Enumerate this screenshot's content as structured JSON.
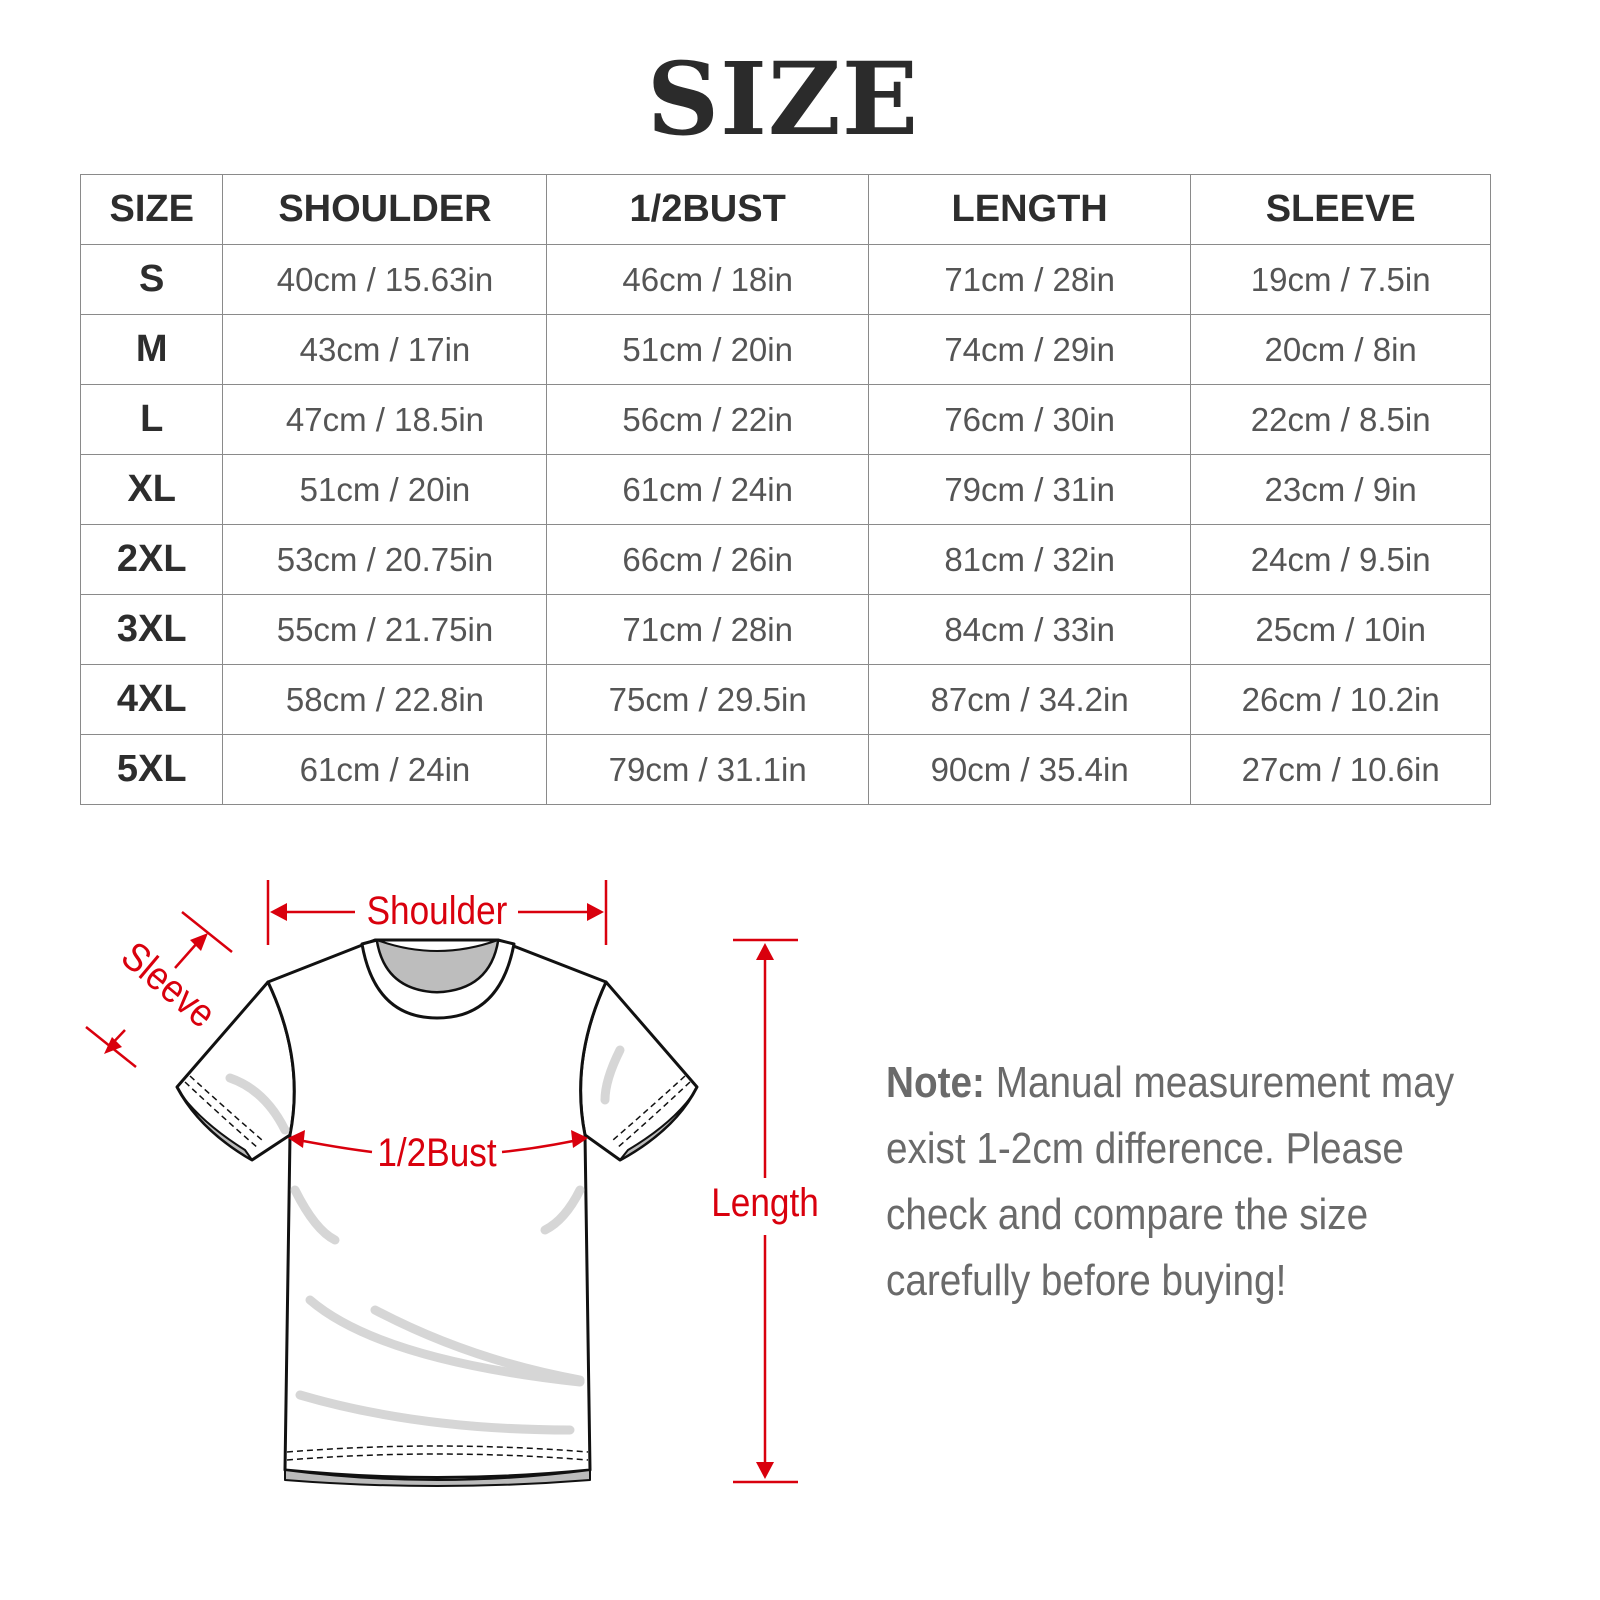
{
  "title": "SIZE",
  "table": {
    "headers": [
      "SIZE",
      "SHOULDER",
      "1/2BUST",
      "LENGTH",
      "SLEEVE"
    ],
    "rows": [
      [
        "S",
        "40cm / 15.63in",
        "46cm / 18in",
        "71cm / 28in",
        "19cm / 7.5in"
      ],
      [
        "M",
        "43cm / 17in",
        "51cm / 20in",
        "74cm / 29in",
        "20cm / 8in"
      ],
      [
        "L",
        "47cm / 18.5in",
        "56cm / 22in",
        "76cm / 30in",
        "22cm / 8.5in"
      ],
      [
        "XL",
        "51cm / 20in",
        "61cm / 24in",
        "79cm / 31in",
        "23cm / 9in"
      ],
      [
        "2XL",
        "53cm / 20.75in",
        "66cm / 26in",
        "81cm / 32in",
        "24cm / 9.5in"
      ],
      [
        "3XL",
        "55cm / 21.75in",
        "71cm / 28in",
        "84cm / 33in",
        "25cm / 10in"
      ],
      [
        "4XL",
        "58cm / 22.8in",
        "75cm / 29.5in",
        "87cm / 34.2in",
        "26cm / 10.2in"
      ],
      [
        "5XL",
        "61cm / 24in",
        "79cm / 31.1in",
        "90cm / 35.4in",
        "27cm / 10.6in"
      ]
    ]
  },
  "diagram": {
    "labels": {
      "shoulder": "Shoulder",
      "sleeve": "Sleeve",
      "bust": "1/2Bust",
      "length": "Length"
    },
    "icon": "t-shirt-icon",
    "colors": {
      "measure": "#d9000d",
      "outline": "#111111",
      "shade": "#c8c8c8"
    }
  },
  "note": {
    "label": "Note:",
    "lines": [
      " Manual measurement may",
      "exist 1-2cm difference. Please",
      "check and compare the size",
      "carefully before buying!"
    ]
  }
}
